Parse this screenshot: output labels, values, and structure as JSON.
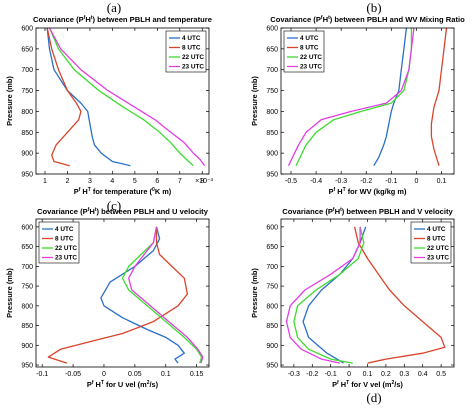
{
  "panel_letters": [
    "(a)",
    "(b)",
    "(c)",
    "(d)"
  ],
  "series_colors": {
    "4 UTC": "#2a6fc9",
    "8 UTC": "#d9442a",
    "22 UTC": "#3ddc2f",
    "23 UTC": "#e23ee2"
  },
  "chart_data": [
    {
      "type": "line",
      "title": "Covariance (P",
      "title_parts": [
        "Covariance (P",
        "f",
        "H",
        "t",
        ") between PBLH and temperature"
      ],
      "xlabel_parts": [
        "P",
        "f",
        " H",
        "T",
        " for temperature (",
        "0",
        "K m)"
      ],
      "exponent_label": "×10⁻³",
      "ylabel": "Pressure (mb)",
      "xlim": [
        0.6,
        8.3
      ],
      "ylim": [
        950,
        600
      ],
      "xticks": [
        1,
        2,
        3,
        4,
        5,
        6,
        7,
        8
      ],
      "yticks": [
        600,
        650,
        700,
        750,
        800,
        850,
        900,
        950
      ],
      "legend_position": "top-right",
      "series": [
        {
          "name": "4 UTC",
          "x": [
            1.1,
            1.2,
            1.4,
            2.0,
            2.6,
            2.9,
            3.0,
            3.1,
            3.2,
            3.5,
            4.0,
            4.8
          ],
          "y": [
            600,
            650,
            700,
            750,
            780,
            800,
            830,
            860,
            880,
            900,
            920,
            930
          ]
        },
        {
          "name": "8 UTC",
          "x": [
            1.1,
            1.3,
            1.6,
            2.0,
            2.4,
            2.6,
            2.5,
            2.0,
            1.5,
            1.3,
            1.4,
            2.1
          ],
          "y": [
            600,
            650,
            700,
            750,
            780,
            800,
            820,
            850,
            880,
            905,
            920,
            930
          ]
        },
        {
          "name": "22 UTC",
          "x": [
            1.2,
            1.6,
            2.3,
            3.4,
            4.5,
            5.4,
            6.1,
            6.6,
            7.0,
            7.3,
            7.6
          ],
          "y": [
            600,
            650,
            700,
            750,
            790,
            820,
            850,
            875,
            900,
            915,
            930
          ]
        },
        {
          "name": "23 UTC",
          "x": [
            1.2,
            1.7,
            2.6,
            3.8,
            5.0,
            5.9,
            6.6,
            7.2,
            7.6,
            7.9,
            8.1
          ],
          "y": [
            600,
            650,
            700,
            750,
            790,
            820,
            850,
            875,
            900,
            915,
            930
          ]
        }
      ]
    },
    {
      "type": "line",
      "title": "Covariance (P",
      "title_parts": [
        "Covariance (P",
        "f",
        "H",
        "t",
        ") between PBLH and WV Mixing Ratio"
      ],
      "xlabel_parts": [
        "P",
        "f",
        " H",
        "T",
        " for WV (kg/kg m)"
      ],
      "exponent_label": "",
      "ylabel": "Pressure (mb)",
      "xlim": [
        -0.54,
        0.15
      ],
      "ylim": [
        950,
        600
      ],
      "xticks": [
        -0.5,
        -0.4,
        -0.3,
        -0.2,
        -0.1,
        0,
        0.1
      ],
      "yticks": [
        600,
        650,
        700,
        750,
        800,
        850,
        900,
        950
      ],
      "legend_position": "top-left",
      "series": [
        {
          "name": "4 UTC",
          "x": [
            -0.04,
            -0.05,
            -0.06,
            -0.07,
            -0.09,
            -0.1,
            -0.11,
            -0.12,
            -0.13,
            -0.15,
            -0.17
          ],
          "y": [
            600,
            650,
            700,
            750,
            780,
            800,
            830,
            860,
            880,
            910,
            930
          ]
        },
        {
          "name": "8 UTC",
          "x": [
            0.12,
            0.11,
            0.1,
            0.09,
            0.07,
            0.06,
            0.06,
            0.07,
            0.08,
            0.09
          ],
          "y": [
            600,
            650,
            700,
            750,
            790,
            830,
            860,
            890,
            910,
            930
          ]
        },
        {
          "name": "22 UTC",
          "x": [
            -0.02,
            -0.02,
            -0.03,
            -0.05,
            -0.1,
            -0.22,
            -0.33,
            -0.4,
            -0.44,
            -0.48
          ],
          "y": [
            600,
            650,
            700,
            750,
            780,
            800,
            820,
            850,
            880,
            930
          ]
        },
        {
          "name": "23 UTC",
          "x": [
            -0.01,
            -0.02,
            -0.03,
            -0.06,
            -0.12,
            -0.26,
            -0.38,
            -0.44,
            -0.47,
            -0.51
          ],
          "y": [
            600,
            650,
            700,
            750,
            780,
            800,
            820,
            850,
            880,
            930
          ]
        }
      ]
    },
    {
      "type": "line",
      "title": "Covariance (P",
      "title_parts": [
        "Covariance (P",
        "f",
        "H",
        "t",
        ") between PBLH and U velocity"
      ],
      "xlabel_parts": [
        "P",
        "f",
        " H",
        "T",
        " for U vel (m",
        "2",
        "/s)"
      ],
      "exponent_label": "",
      "ylabel": "Pressure (mb)",
      "xlim": [
        -0.11,
        0.17
      ],
      "ylim": [
        955,
        580
      ],
      "xticks": [
        -0.1,
        -0.05,
        0,
        0.05,
        0.1,
        0.15
      ],
      "yticks": [
        600,
        650,
        700,
        750,
        800,
        850,
        900,
        950
      ],
      "legend_position": "top-left",
      "series": [
        {
          "name": "4 UTC",
          "x": [
            0.085,
            0.09,
            0.08,
            0.05,
            0.01,
            -0.005,
            0.0,
            0.03,
            0.07,
            0.1,
            0.12,
            0.13,
            0.115,
            0.12
          ],
          "y": [
            600,
            630,
            660,
            700,
            740,
            780,
            800,
            830,
            860,
            880,
            900,
            920,
            935,
            945
          ]
        },
        {
          "name": "8 UTC",
          "x": [
            0.085,
            0.085,
            0.09,
            0.11,
            0.13,
            0.135,
            0.12,
            0.08,
            0.03,
            -0.02,
            -0.07,
            -0.09,
            -0.06
          ],
          "y": [
            600,
            640,
            670,
            700,
            730,
            770,
            800,
            840,
            870,
            890,
            910,
            930,
            945
          ]
        },
        {
          "name": "22 UTC",
          "x": [
            0.085,
            0.08,
            0.06,
            0.04,
            0.03,
            0.04,
            0.07,
            0.1,
            0.13,
            0.15,
            0.158,
            0.155
          ],
          "y": [
            600,
            640,
            670,
            700,
            730,
            760,
            800,
            840,
            880,
            910,
            930,
            945
          ]
        },
        {
          "name": "23 UTC",
          "x": [
            0.085,
            0.08,
            0.065,
            0.05,
            0.04,
            0.045,
            0.075,
            0.105,
            0.135,
            0.152,
            0.16,
            0.157
          ],
          "y": [
            600,
            640,
            670,
            700,
            730,
            760,
            800,
            840,
            880,
            910,
            930,
            945
          ]
        }
      ]
    },
    {
      "type": "line",
      "title": "Covariance (P",
      "title_parts": [
        "Covariance (P",
        "f",
        "H",
        "t",
        ") between PBLH and V velocity"
      ],
      "xlabel_parts": [
        "P",
        "f",
        " H",
        "T",
        " for V vel (m",
        "2",
        "/s)"
      ],
      "exponent_label": "",
      "ylabel": "Pressure (mb)",
      "xlim": [
        -0.37,
        0.57
      ],
      "ylim": [
        955,
        580
      ],
      "xticks": [
        -0.3,
        -0.2,
        -0.1,
        0,
        0.1,
        0.2,
        0.3,
        0.4,
        0.5
      ],
      "yticks": [
        600,
        650,
        700,
        750,
        800,
        850,
        900,
        950
      ],
      "legend_position": "top-right",
      "series": [
        {
          "name": "4 UTC",
          "x": [
            0.09,
            0.06,
            0.02,
            -0.05,
            -0.15,
            -0.22,
            -0.25,
            -0.22,
            -0.12,
            -0.03
          ],
          "y": [
            600,
            640,
            680,
            720,
            760,
            800,
            840,
            880,
            920,
            945
          ]
        },
        {
          "name": "8 UTC",
          "x": [
            0.03,
            0.05,
            0.1,
            0.16,
            0.22,
            0.3,
            0.4,
            0.5,
            0.52,
            0.4,
            0.2,
            0.1
          ],
          "y": [
            600,
            640,
            680,
            720,
            760,
            800,
            840,
            880,
            905,
            920,
            935,
            945
          ]
        },
        {
          "name": "22 UTC",
          "x": [
            0.06,
            0.08,
            0.05,
            -0.05,
            -0.18,
            -0.28,
            -0.3,
            -0.28,
            -0.22,
            -0.1,
            0.02
          ],
          "y": [
            600,
            640,
            680,
            720,
            760,
            800,
            840,
            880,
            910,
            935,
            945
          ]
        },
        {
          "name": "23 UTC",
          "x": [
            0.06,
            0.06,
            0.02,
            -0.1,
            -0.24,
            -0.32,
            -0.34,
            -0.32,
            -0.26,
            -0.15,
            -0.05
          ],
          "y": [
            600,
            640,
            680,
            720,
            760,
            800,
            840,
            880,
            910,
            935,
            945
          ]
        }
      ]
    }
  ]
}
